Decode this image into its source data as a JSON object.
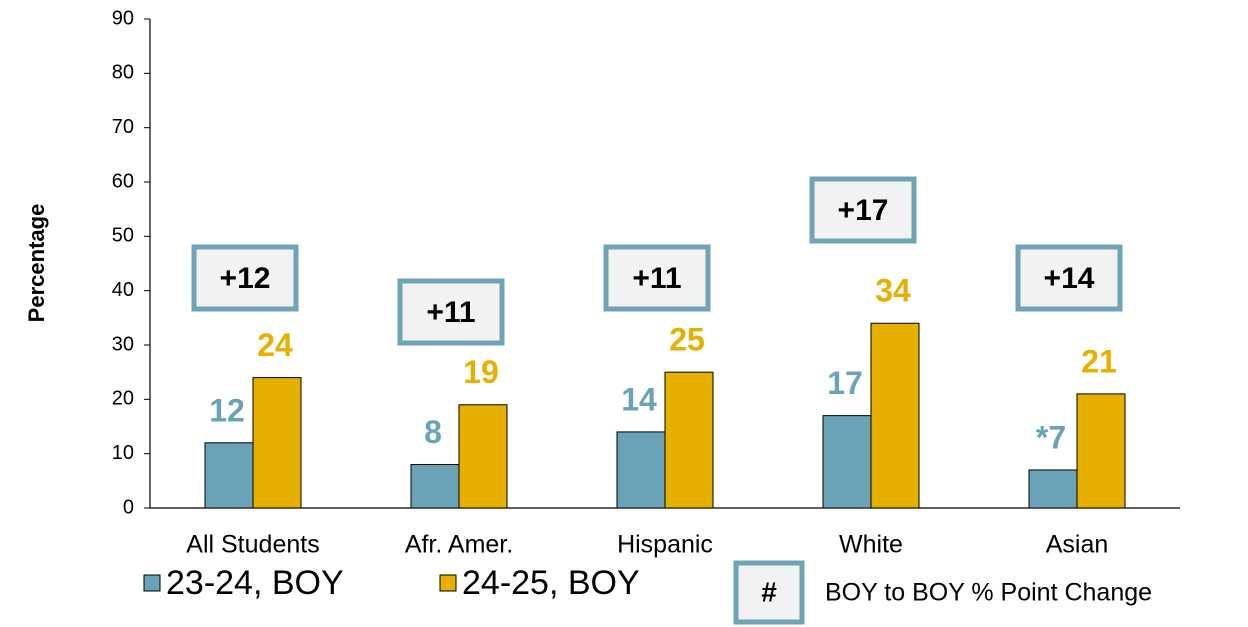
{
  "chart_data": {
    "type": "bar",
    "y_label": "Percentage",
    "categories": [
      "All Students",
      "Afr. Amer.",
      "Hispanic",
      "White",
      "Asian"
    ],
    "series": [
      {
        "name": "23-24, BOY",
        "color": "#6aa3b8",
        "values": [
          12,
          8,
          14,
          17,
          7
        ],
        "value_labels": [
          "12",
          "8",
          "14",
          "17",
          "*7"
        ]
      },
      {
        "name": "24-25, BOY",
        "color": "#e6b000",
        "values": [
          24,
          19,
          25,
          34,
          21
        ]
      }
    ],
    "annotations": [
      "+12",
      "+11",
      "+11",
      "+17",
      "+14"
    ],
    "annotation_legend": {
      "symbol": "#",
      "text": "BOY to BOY % Point Change"
    },
    "ylim": [
      0,
      90
    ],
    "yticks": [
      0,
      10,
      20,
      30,
      40,
      50,
      60,
      70,
      80,
      90
    ],
    "grid": false
  }
}
